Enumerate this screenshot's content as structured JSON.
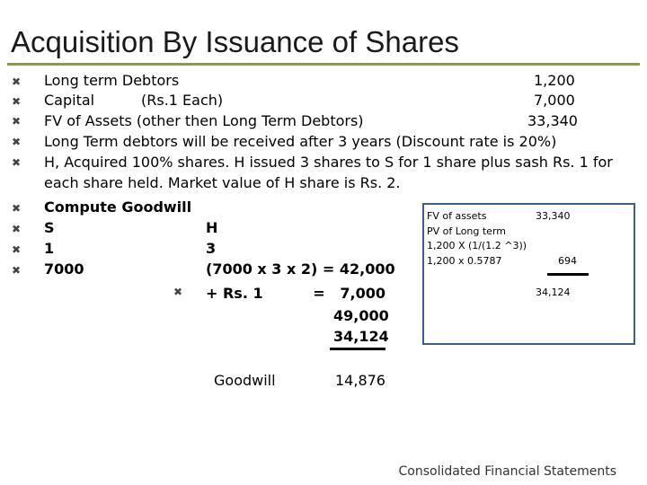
{
  "slide": {
    "title": "Acquisition By Issuance of Shares",
    "bullet_glyph": "✖",
    "lines": {
      "l1_label": "Long term Debtors",
      "l1_value": "1,200",
      "l2_label": "Capital",
      "l2_mid": "(Rs.1 Each)",
      "l2_value": "7,000",
      "l3_label": "FV of Assets (other then Long Term Debtors)",
      "l3_value": "33,340",
      "l4": "Long Term debtors will be received after 3 years (Discount rate is 20%)",
      "l5a": "H, Acquired 100% shares.  H issued 3 shares to S for 1 share plus sash Rs. 1 for",
      "l5b": "each share held. Market value of H share is Rs. 2.",
      "l6": "Compute Goodwill",
      "l7_left": "S",
      "l7_right": "H",
      "l8_left": "1",
      "l8_right": "3",
      "l9_left": "7000",
      "l9_right": "(7000 x 3 x 2) = 42,000",
      "l10": "+ Rs. 1          =   7,000",
      "total1": "49,000",
      "total2": "34,124",
      "goodwill_label": "Goodwill",
      "goodwill_value": "14,876"
    },
    "box": {
      "fv_label": "FV  of assets",
      "fv_value": "33,340",
      "pv_label": "PV of Long term",
      "formula1": "1,200 X (1/(1.2 ^3))",
      "formula2": "1,200 x 0.5787",
      "pv_value": "694",
      "sum_value": "34,124"
    },
    "footer": "Consolidated Financial Statements",
    "colors": {
      "title_rule": "#8a9a4a",
      "box_border": "#3d5d8a"
    }
  }
}
